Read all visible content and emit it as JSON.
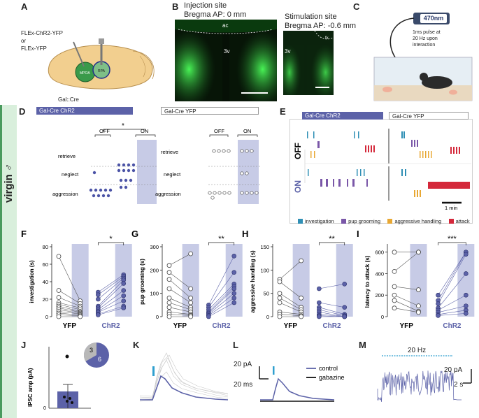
{
  "panels": {
    "A": {
      "label": "A",
      "construct_line1": "FLEx-ChR2-YFP",
      "construct_line2": "or",
      "construct_line3": "FLEx-YFP",
      "region1": "MPOA",
      "region2": "RPA",
      "cre_line": "Gal::Cre"
    },
    "B": {
      "label": "B",
      "inj_title1": "Injection site",
      "inj_title2": "Bregma AP: 0 mm",
      "stim_title1": "Stimulation site",
      "stim_title2": "Bregma AP: -0.6 mm",
      "ac": "ac",
      "v3": "3v",
      "v3b": "3v",
      "fx": "fx"
    },
    "C": {
      "label": "C",
      "wavelength": "470nm",
      "note1": "1ms pulse at",
      "note2": "20 Hz upon",
      "note3": "interaction"
    },
    "D": {
      "label": "D",
      "chr2_header": "Gal-Cre ChR2",
      "yfp_header": "Gal-Cre YFP",
      "off": "OFF",
      "on": "ON",
      "off2": "OFF",
      "on2": "ON",
      "sig": "*",
      "rows": [
        "retrieve",
        "neglect",
        "aggression"
      ],
      "rows2": [
        "retrieve",
        "neglect",
        "aggression"
      ]
    },
    "E": {
      "label": "E",
      "chr2_header": "Gal-Cre ChR2",
      "yfp_header": "Gal-Cre YFP",
      "off": "OFF",
      "on": "ON",
      "scale": "1 min",
      "legend": [
        "investigation",
        "pup grooming",
        "aggressive handling",
        "attack"
      ]
    },
    "J": {
      "label": "J",
      "ylabel": "IPSC amp (pA)",
      "pie_a": "3",
      "pie_b": "6",
      "y0": "0"
    },
    "K": {
      "label": "K"
    },
    "L": {
      "label": "L",
      "scale_pa": "20 pA",
      "scale_ms": "20 ms",
      "legend_control": "control",
      "legend_gabazine": "gabazine"
    },
    "M": {
      "label": "M",
      "freq": "20 Hz",
      "scale_pa": "20 pA",
      "scale_s": "2 s"
    },
    "virgin": "virgin ♂"
  },
  "colors": {
    "chr2": "#5c62a8",
    "chr2_light": "#c7cbe6",
    "yfp_bg": "#c7cbe6",
    "investigation": "#2f8fb5",
    "pup_grooming": "#7a57a8",
    "aggressive_handling": "#e8a834",
    "attack": "#d4283a",
    "gfp": "#39e04a"
  },
  "chart_data": [
    {
      "type": "scatter",
      "panel": "F",
      "title": "F",
      "ylabel": "investigation (s)",
      "ylim": [
        0,
        80
      ],
      "yticks": [
        "0",
        "20",
        "40",
        "60",
        "80"
      ],
      "groups": [
        "YFP",
        "ChR2"
      ],
      "sig": "*",
      "yfp_off": [
        69,
        30,
        22,
        16,
        14,
        12,
        10,
        8,
        6,
        4,
        2,
        0
      ],
      "yfp_on": [
        18,
        15,
        12,
        10,
        8,
        6,
        5,
        4,
        3,
        2,
        1,
        0
      ],
      "chr2_off": [
        28,
        25,
        20,
        12,
        10,
        8,
        6,
        5,
        3,
        2
      ],
      "chr2_on": [
        48,
        46,
        44,
        42,
        38,
        30,
        24,
        18,
        12,
        10
      ]
    },
    {
      "type": "scatter",
      "panel": "G",
      "title": "G",
      "ylabel": "pup grooming (s)",
      "ylim": [
        0,
        300
      ],
      "yticks": [
        "0",
        "100",
        "200",
        "300"
      ],
      "groups": [
        "YFP",
        "ChR2"
      ],
      "sig": "**",
      "yfp_off": [
        220,
        190,
        160,
        120,
        80,
        60,
        40,
        20,
        10,
        0
      ],
      "yfp_on": [
        270,
        120,
        80,
        60,
        40,
        30,
        20,
        10,
        5,
        0
      ],
      "chr2_off": [
        50,
        40,
        30,
        20,
        15,
        10,
        5,
        0
      ],
      "chr2_on": [
        260,
        190,
        140,
        130,
        120,
        100,
        80,
        60
      ]
    },
    {
      "type": "scatter",
      "panel": "H",
      "title": "H",
      "ylabel": "aggressive handling (s)",
      "ylim": [
        0,
        150
      ],
      "yticks": [
        "0",
        "50",
        "100",
        "150"
      ],
      "groups": [
        "YFP",
        "ChR2"
      ],
      "sig": "**",
      "yfp_off": [
        80,
        75,
        50,
        40,
        30,
        10,
        5,
        0
      ],
      "yfp_on": [
        120,
        40,
        20,
        15,
        10,
        5,
        2,
        0
      ],
      "chr2_off": [
        60,
        30,
        20,
        15,
        10,
        5,
        2,
        0
      ],
      "chr2_on": [
        70,
        20,
        5,
        2,
        0,
        0,
        0,
        0
      ]
    },
    {
      "type": "scatter",
      "panel": "I",
      "title": "I",
      "ylabel": "latency to attack (s)",
      "ylim": [
        0,
        650
      ],
      "yticks": [
        "0",
        "200",
        "400",
        "600"
      ],
      "groups": [
        "YFP",
        "ChR2"
      ],
      "sig": "***",
      "yfp_off": [
        600,
        420,
        280,
        200,
        150,
        80
      ],
      "yfp_on": [
        600,
        600,
        250,
        100,
        50,
        40
      ],
      "chr2_off": [
        200,
        150,
        120,
        80,
        60,
        40,
        20,
        10
      ],
      "chr2_on": [
        600,
        600,
        580,
        400,
        200,
        100,
        60,
        30
      ]
    }
  ]
}
